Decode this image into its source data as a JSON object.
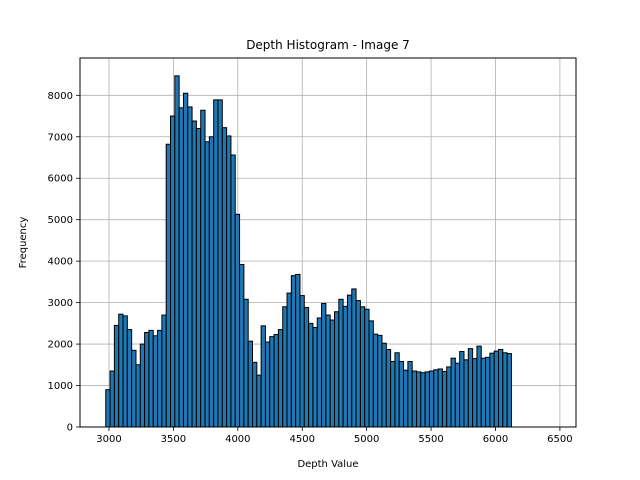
{
  "chart_data": {
    "type": "bar",
    "title": "Depth Histogram - Image 7",
    "xlabel": "Depth Value",
    "ylabel": "Frequency",
    "xlim": [
      2775,
      6625
    ],
    "ylim": [
      0,
      8900
    ],
    "xticks": [
      3000,
      3500,
      4000,
      4500,
      5000,
      5500,
      6000,
      6500
    ],
    "yticks": [
      0,
      1000,
      2000,
      3000,
      4000,
      5000,
      6000,
      7000,
      8000
    ],
    "grid": true,
    "bin_start": 2975,
    "bin_width": 33.5,
    "bar_color": "#1f77b4",
    "edge_color": "#000000",
    "values": [
      900,
      1350,
      2450,
      2720,
      2680,
      2350,
      1850,
      1500,
      2000,
      2280,
      2330,
      2200,
      2330,
      2700,
      6820,
      7500,
      8470,
      7700,
      8050,
      7720,
      7380,
      7200,
      7640,
      6880,
      7000,
      7890,
      7890,
      7220,
      7020,
      6560,
      5130,
      3920,
      3080,
      2070,
      1560,
      1250,
      2440,
      2050,
      2180,
      2230,
      2350,
      2900,
      3230,
      3650,
      3680,
      3170,
      2880,
      2500,
      2400,
      2630,
      2980,
      2700,
      2580,
      2780,
      3080,
      2910,
      3180,
      3330,
      3050,
      2900,
      2840,
      2560,
      2240,
      2210,
      2020,
      1870,
      1580,
      1790,
      1580,
      1370,
      1580,
      1350,
      1330,
      1310,
      1330,
      1350,
      1380,
      1400,
      1340,
      1450,
      1660,
      1540,
      1820,
      1620,
      1890,
      1650,
      1950,
      1660,
      1680,
      1780,
      1830,
      1870,
      1790,
      1770
    ]
  }
}
